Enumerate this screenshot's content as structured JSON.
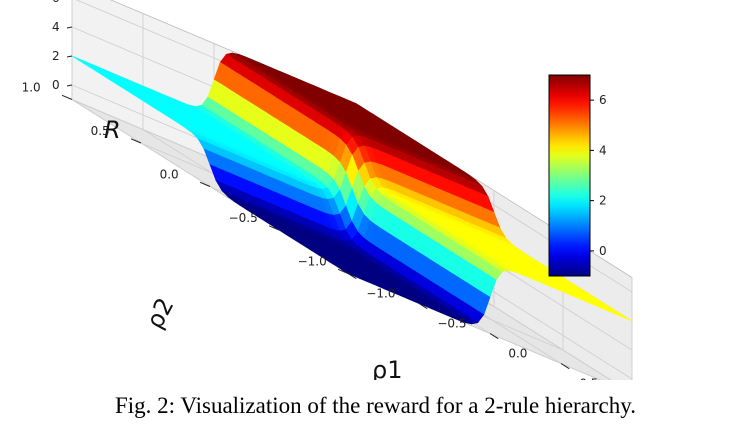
{
  "chart_data": {
    "type": "surface",
    "title": "",
    "xlabel": "ρ1",
    "ylabel": "ρ2",
    "zlabel": "R",
    "xlim": [
      -1.0,
      1.0
    ],
    "ylim": [
      -1.0,
      1.0
    ],
    "zlim": [
      -1,
      7
    ],
    "x_ticks": [
      "−1.0",
      "−0.5",
      "0.0",
      "0.5",
      "1.0"
    ],
    "y_ticks": [
      "−1.0",
      "−0.5",
      "0.0",
      "0.5",
      "1.0"
    ],
    "z_ticks": [
      "0",
      "2",
      "4",
      "6"
    ],
    "surface_levels": {
      "rho1_neg_rho2_neg": -1,
      "rho1_neg_rho2_pos": 2,
      "rho1_pos_rho2_neg": 4,
      "rho1_pos_rho2_pos": 7
    },
    "colormap": "jet",
    "colorbar": {
      "range": [
        -1,
        7
      ],
      "ticks": [
        "0",
        "2",
        "4",
        "6"
      ],
      "placement": "right"
    },
    "grid": true
  },
  "caption": "Fig. 2: Visualization of the reward for a 2-rule hierarchy."
}
